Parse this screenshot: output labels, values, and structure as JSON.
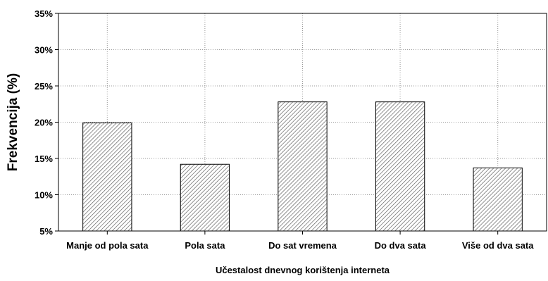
{
  "chart_data": {
    "type": "bar",
    "title": "",
    "xlabel": "Učestalost dnevnog korištenja interneta",
    "ylabel": "Frekvencija (%)",
    "categories": [
      "Manje od pola sata",
      "Pola sata",
      "Do sat vremena",
      "Do dva sata",
      "Više od dva sata"
    ],
    "values": [
      19.9,
      14.2,
      22.8,
      22.8,
      13.7
    ],
    "ylim": [
      5,
      35
    ],
    "yticks": [
      5,
      10,
      15,
      20,
      25,
      30,
      35
    ],
    "ytick_labels": [
      "5%",
      "10%",
      "15%",
      "20%",
      "25%",
      "30%",
      "35%"
    ],
    "grid": true,
    "bar_fill": "hatched",
    "colors": {
      "bar_stroke": "#000000",
      "hatch": "#555555",
      "grid": "#999999",
      "axis": "#000000"
    }
  }
}
